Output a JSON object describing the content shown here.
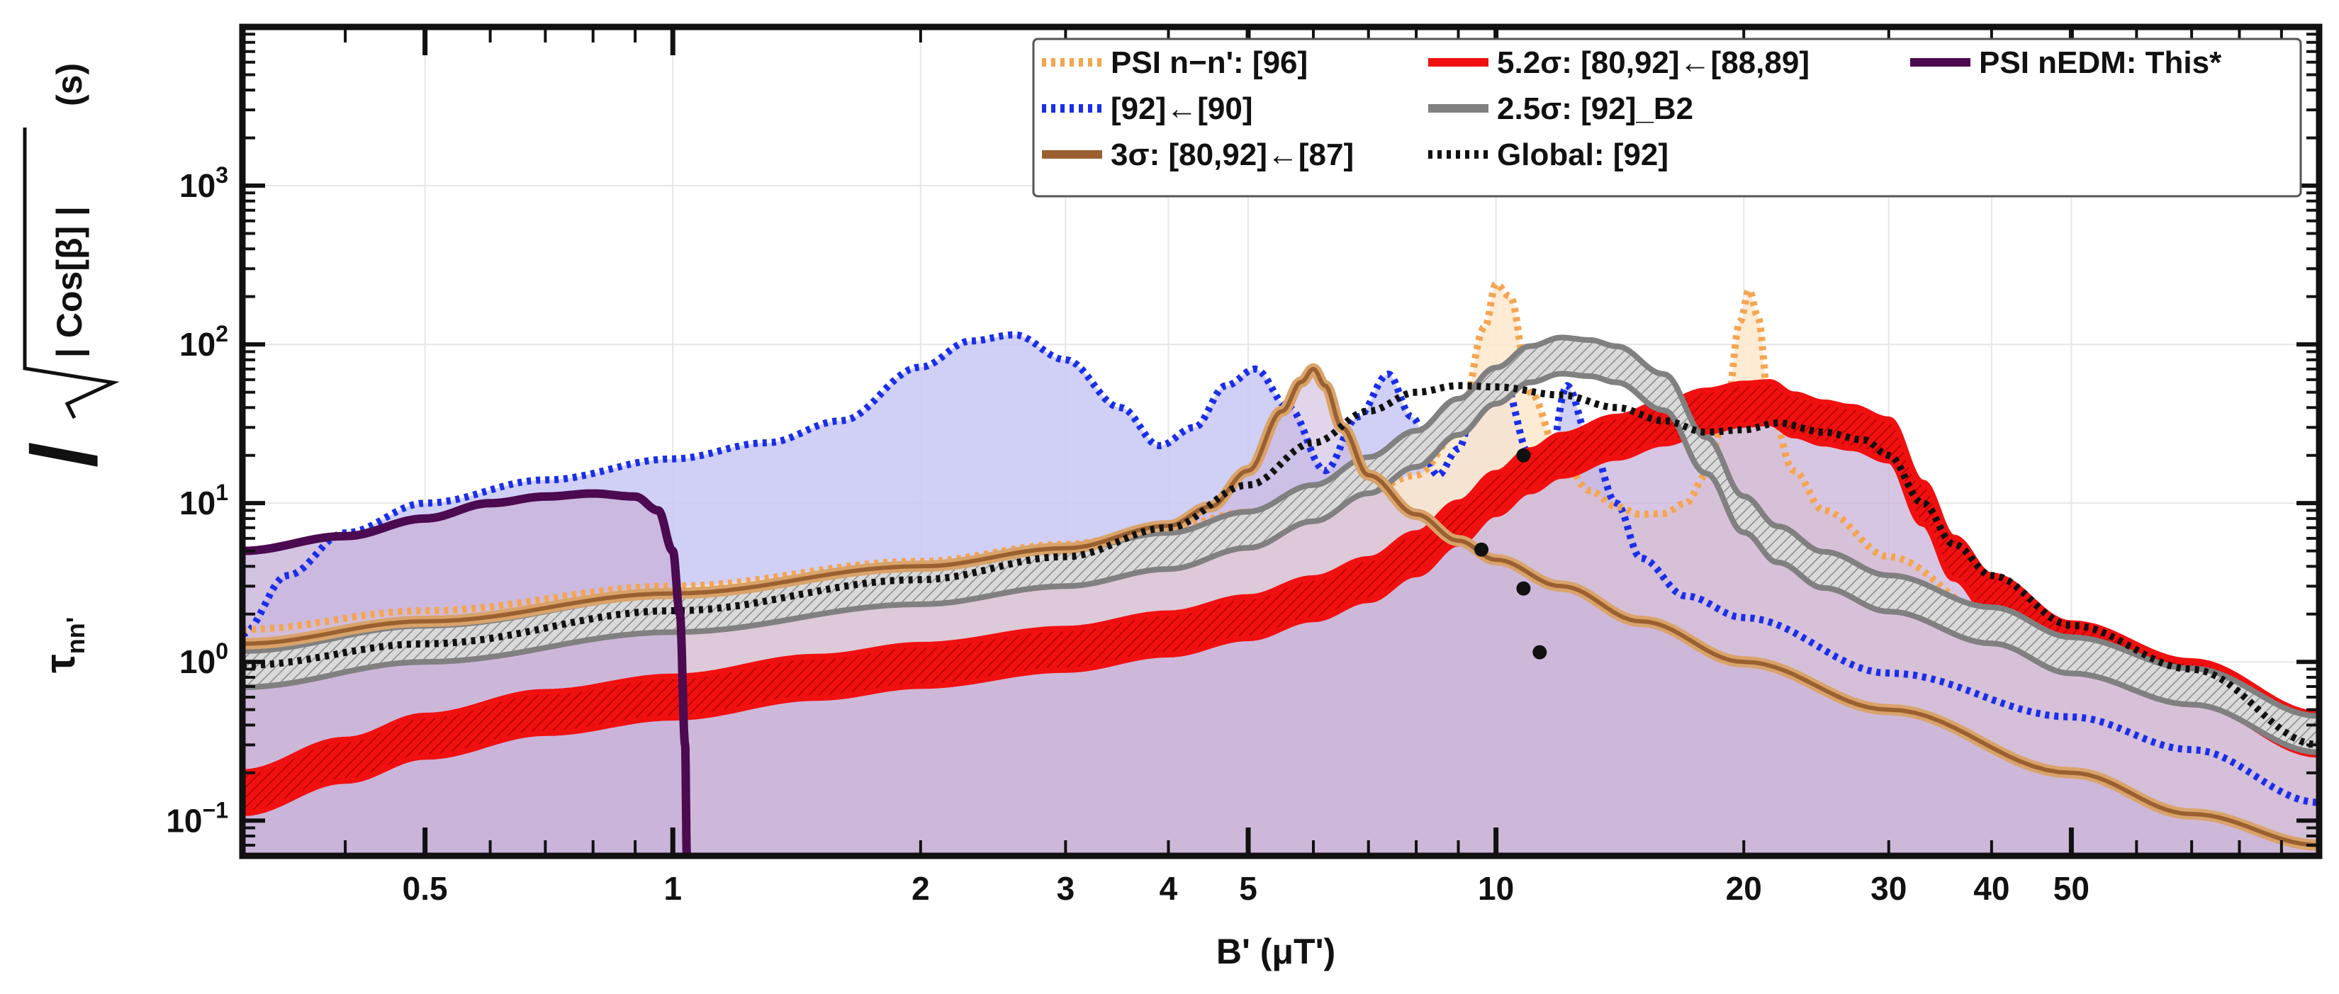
{
  "chart_data": {
    "type": "line",
    "title": "",
    "xlabel": "B' (μT')",
    "ylabel_prefix": "τ",
    "ylabel_sub": "nn'",
    "ylabel_root": "| Cos[β] |",
    "ylabel_unit": "(s)",
    "xscale": "log",
    "yscale": "log",
    "xlim": [
      0.3,
      100
    ],
    "ylim": [
      0.06,
      10000
    ],
    "grid": true,
    "legend_position": "top-right",
    "x_tick_labels": [
      "0.5",
      "1",
      "2",
      "3",
      "4",
      "5",
      "10",
      "20",
      "30",
      "40",
      "50"
    ],
    "y_tick_labels": [
      {
        "base": "10",
        "exp": "−1"
      },
      {
        "base": "10",
        "exp": "0"
      },
      {
        "base": "10",
        "exp": "1"
      },
      {
        "base": "10",
        "exp": "2"
      },
      {
        "base": "10",
        "exp": "3"
      }
    ],
    "colors": {
      "psi_nn": "#f5a550",
      "blue": "#1a2eea",
      "brown": "#9a6030",
      "red": "#f01010",
      "gray": "#808080",
      "global": "#111111",
      "nedm": "#4c0a50",
      "fill_blue": "#c8c8f5",
      "fill_orange": "#fde7cc",
      "fill_purple": "#c9b3da"
    },
    "series": [
      {
        "name": "PSI n−n': [96]",
        "style": "dotted",
        "color": "#f5a550",
        "x": [
          0.3,
          0.5,
          1,
          2,
          3,
          4,
          5,
          6,
          7,
          8,
          9,
          9.7,
          10,
          10.4,
          11,
          12,
          13,
          14,
          15,
          16,
          17,
          18,
          19,
          19.8,
          20.3,
          20.8,
          21.5,
          23,
          25,
          30,
          40,
          50,
          70,
          100
        ],
        "y": [
          1.6,
          2.1,
          3.0,
          4.3,
          5.5,
          7.0,
          8.8,
          10.3,
          12,
          15,
          28,
          130,
          240,
          200,
          50,
          19,
          12,
          9.5,
          8.5,
          8.6,
          10,
          15,
          35,
          140,
          220,
          150,
          40,
          16,
          9,
          4.6,
          2.0,
          1.2,
          0.8,
          0.4
        ]
      },
      {
        "name": "[92]←[90]",
        "style": "dotted",
        "color": "#1a2eea",
        "x": [
          0.3,
          0.34,
          0.4,
          0.5,
          0.7,
          1,
          1.3,
          1.6,
          2,
          2.3,
          2.6,
          3,
          3.5,
          3.9,
          4.3,
          4.7,
          5.1,
          5.6,
          6.2,
          6.8,
          7.4,
          7.9,
          8.5,
          9.0,
          9.5,
          10.2,
          11,
          11.5,
          12.2,
          13,
          14,
          15,
          17,
          20,
          30,
          50,
          70,
          100
        ],
        "y": [
          1.5,
          3.5,
          6.5,
          10,
          14,
          19,
          24,
          33,
          72,
          105,
          115,
          80,
          40,
          23,
          30,
          55,
          70,
          40,
          16,
          35,
          65,
          35,
          15,
          22,
          50,
          60,
          20,
          14,
          55,
          25,
          10,
          4.5,
          2.6,
          1.9,
          0.85,
          0.45,
          0.28,
          0.13
        ]
      },
      {
        "name": "3σ: [80,92]←[87]",
        "style": "solid",
        "color": "#9a6030",
        "x": [
          0.3,
          0.5,
          1,
          2,
          3,
          4,
          4.5,
          5,
          5.5,
          5.8,
          6.0,
          6.2,
          6.5,
          7,
          8,
          9,
          10,
          12,
          15,
          20,
          30,
          50,
          70,
          100
        ],
        "y": [
          1.3,
          1.8,
          2.7,
          4.0,
          5.2,
          7.2,
          9.5,
          16,
          38,
          58,
          70,
          55,
          30,
          15,
          8.5,
          5.8,
          4.4,
          3.0,
          1.8,
          1.0,
          0.5,
          0.2,
          0.11,
          0.07
        ]
      },
      {
        "name": "5.2σ: [80,92]←[88,89]",
        "style": "band",
        "color": "#f01010",
        "x": [
          0.3,
          0.4,
          0.5,
          0.7,
          1,
          1.5,
          2,
          3,
          4,
          5,
          6,
          7,
          8,
          9,
          10,
          11,
          12,
          14,
          16,
          18,
          20,
          21.5,
          23,
          25,
          27,
          30,
          33,
          36,
          40,
          50,
          70,
          100
        ],
        "y": [
          0.15,
          0.24,
          0.34,
          0.48,
          0.6,
          0.8,
          0.95,
          1.2,
          1.5,
          1.9,
          2.5,
          3.3,
          4.8,
          7.5,
          11.5,
          16,
          20,
          26,
          32,
          38,
          42,
          43,
          36,
          32,
          30,
          25,
          10,
          4.5,
          2.6,
          1.3,
          0.75,
          0.35
        ],
        "band_factor": 1.35
      },
      {
        "name": "2.5σ: [92]_B2",
        "style": "band",
        "color": "#808080",
        "x": [
          0.3,
          0.5,
          1,
          2,
          3,
          4,
          5,
          6,
          7,
          8,
          9,
          10,
          11,
          12,
          13,
          14,
          16,
          18,
          20,
          22,
          25,
          30,
          40,
          50,
          70,
          100
        ],
        "y": [
          0.9,
          1.3,
          2.0,
          3.0,
          3.9,
          5.0,
          6.8,
          10,
          15,
          22,
          35,
          55,
          75,
          85,
          82,
          75,
          50,
          20,
          8.5,
          5.5,
          3.8,
          2.7,
          1.7,
          1.1,
          0.7,
          0.35
        ],
        "band_factor": 1.3
      },
      {
        "name": "Global: [92]",
        "style": "dotted",
        "color": "#111111",
        "x": [
          0.3,
          0.5,
          1,
          2,
          3,
          4,
          5,
          6,
          7,
          8,
          9,
          10,
          12,
          14,
          16,
          18,
          20,
          22,
          25,
          28,
          30,
          33,
          36,
          40,
          50,
          70,
          100
        ],
        "y": [
          0.95,
          1.3,
          2.1,
          3.3,
          4.6,
          7.0,
          13,
          24,
          38,
          50,
          55,
          54,
          48,
          40,
          33,
          28,
          29,
          32,
          28,
          25,
          20,
          10,
          5.5,
          3.5,
          1.7,
          0.9,
          0.3
        ]
      },
      {
        "name": "PSI nEDM: This*",
        "style": "solid",
        "color": "#4c0a50",
        "x": [
          0.3,
          0.4,
          0.5,
          0.6,
          0.7,
          0.8,
          0.9,
          0.96,
          1.0,
          1.02,
          1.035,
          1.04
        ],
        "y": [
          5,
          6.2,
          8.0,
          10,
          11,
          11.5,
          11,
          9,
          5,
          2,
          0.3,
          0.06
        ]
      }
    ],
    "points": [
      {
        "x": 9.6,
        "y": 5.1
      },
      {
        "x": 10.8,
        "y": 20
      },
      {
        "x": 10.8,
        "y": 2.9
      },
      {
        "x": 11.3,
        "y": 1.15
      }
    ],
    "legend": [
      {
        "label": "PSI n−n': [96]",
        "key": "psi_nn",
        "style": "dotted"
      },
      {
        "label": "5.2σ: [80,92]←[88,89]",
        "key": "red",
        "style": "solid"
      },
      {
        "label": "PSI nEDM: This*",
        "key": "nedm",
        "style": "solid"
      },
      {
        "label": "[92]←[90]",
        "key": "blue",
        "style": "dotted"
      },
      {
        "label": "2.5σ: [92]_B2",
        "key": "gray",
        "style": "solid"
      },
      {
        "label": "3σ: [80,92]←[87]",
        "key": "brown",
        "style": "solid"
      },
      {
        "label": "Global: [92]",
        "key": "global",
        "style": "dotted"
      }
    ]
  }
}
